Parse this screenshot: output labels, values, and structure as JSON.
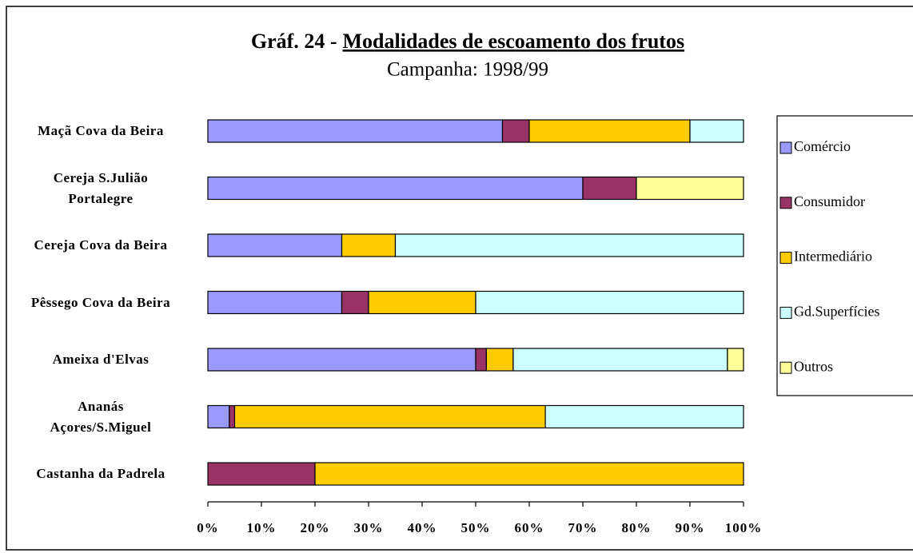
{
  "chart_data": {
    "type": "stacked_barh",
    "title": [
      "Gráf. 24 -",
      "Modalidades de escoamento dos frutos"
    ],
    "subtitle": "Campanha: 1998/99",
    "categories": [
      "Maçã Cova da Beira",
      "Cereja S.Julião\nPortalegre",
      "Cereja Cova da Beira",
      "Pêssego Cova da Beira",
      "Ameixa d'Elvas",
      "Ananás\nAçores/S.Miguel",
      "Castanha da Padrela"
    ],
    "series": [
      {
        "name": "Comércio",
        "color": "#9999ff",
        "values": [
          55,
          70,
          25,
          25,
          50,
          4,
          0
        ]
      },
      {
        "name": "Consumidor",
        "color": "#993366",
        "values": [
          5,
          10,
          0,
          5,
          2,
          1,
          20
        ]
      },
      {
        "name": "Intermediário",
        "color": "#ffcc00",
        "values": [
          30,
          0,
          10,
          20,
          5,
          58,
          80
        ]
      },
      {
        "name": "Gd.Superfícies",
        "color": "#ccffff",
        "values": [
          10,
          0,
          65,
          50,
          40,
          37,
          0
        ]
      },
      {
        "name": "Outros",
        "color": "#ffff99",
        "values": [
          0,
          20,
          0,
          0,
          3,
          0,
          0
        ]
      }
    ],
    "xlim": [
      0,
      100
    ],
    "xticks": [
      {
        "value": 0,
        "label": "0%"
      },
      {
        "value": 10,
        "label": "10%"
      },
      {
        "value": 20,
        "label": "20%"
      },
      {
        "value": 30,
        "label": "30%"
      },
      {
        "value": 40,
        "label": "40%"
      },
      {
        "value": 50,
        "label": "50%"
      },
      {
        "value": 60,
        "label": "60%"
      },
      {
        "value": 70,
        "label": "70%"
      },
      {
        "value": 80,
        "label": "80%"
      },
      {
        "value": 90,
        "label": "90%"
      },
      {
        "value": 100,
        "label": "100%"
      }
    ],
    "legend": "right"
  }
}
